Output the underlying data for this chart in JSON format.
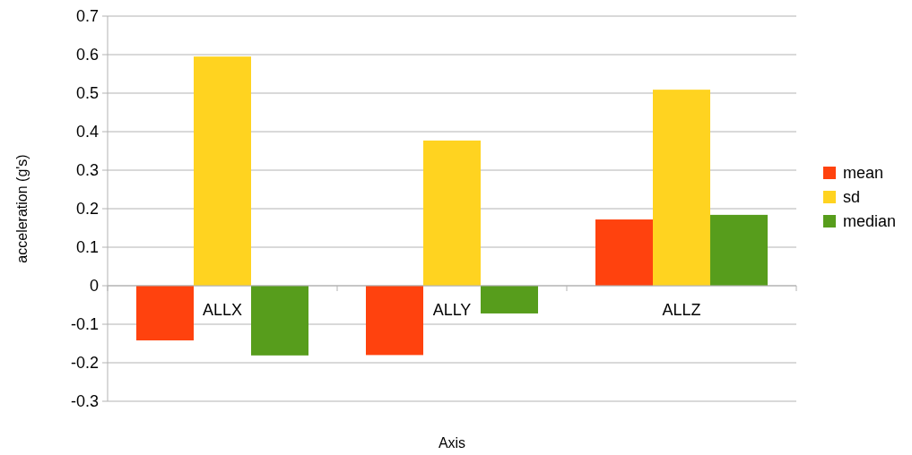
{
  "chart_data": {
    "type": "bar",
    "xlabel": "Axis",
    "ylabel": "acceleration (g's)",
    "categories": [
      "ALLX",
      "ALLY",
      "ALLZ"
    ],
    "series": [
      {
        "name": "mean",
        "color": "#ff420e",
        "values": [
          -0.142,
          -0.18,
          0.172
        ]
      },
      {
        "name": "sd",
        "color": "#ffd320",
        "values": [
          0.595,
          0.377,
          0.509
        ]
      },
      {
        "name": "median",
        "color": "#579d1c",
        "values": [
          -0.181,
          -0.072,
          0.184
        ]
      }
    ],
    "ylim": [
      -0.3,
      0.7
    ],
    "yticks": [
      {
        "value": -0.3,
        "label": "-0.3"
      },
      {
        "value": -0.2,
        "label": "-0.2"
      },
      {
        "value": -0.1,
        "label": "-0.1"
      },
      0,
      0.1,
      0.2,
      0.3,
      0.4,
      0.5,
      0.6,
      0.7
    ],
    "grid": "y",
    "legend": "right"
  }
}
